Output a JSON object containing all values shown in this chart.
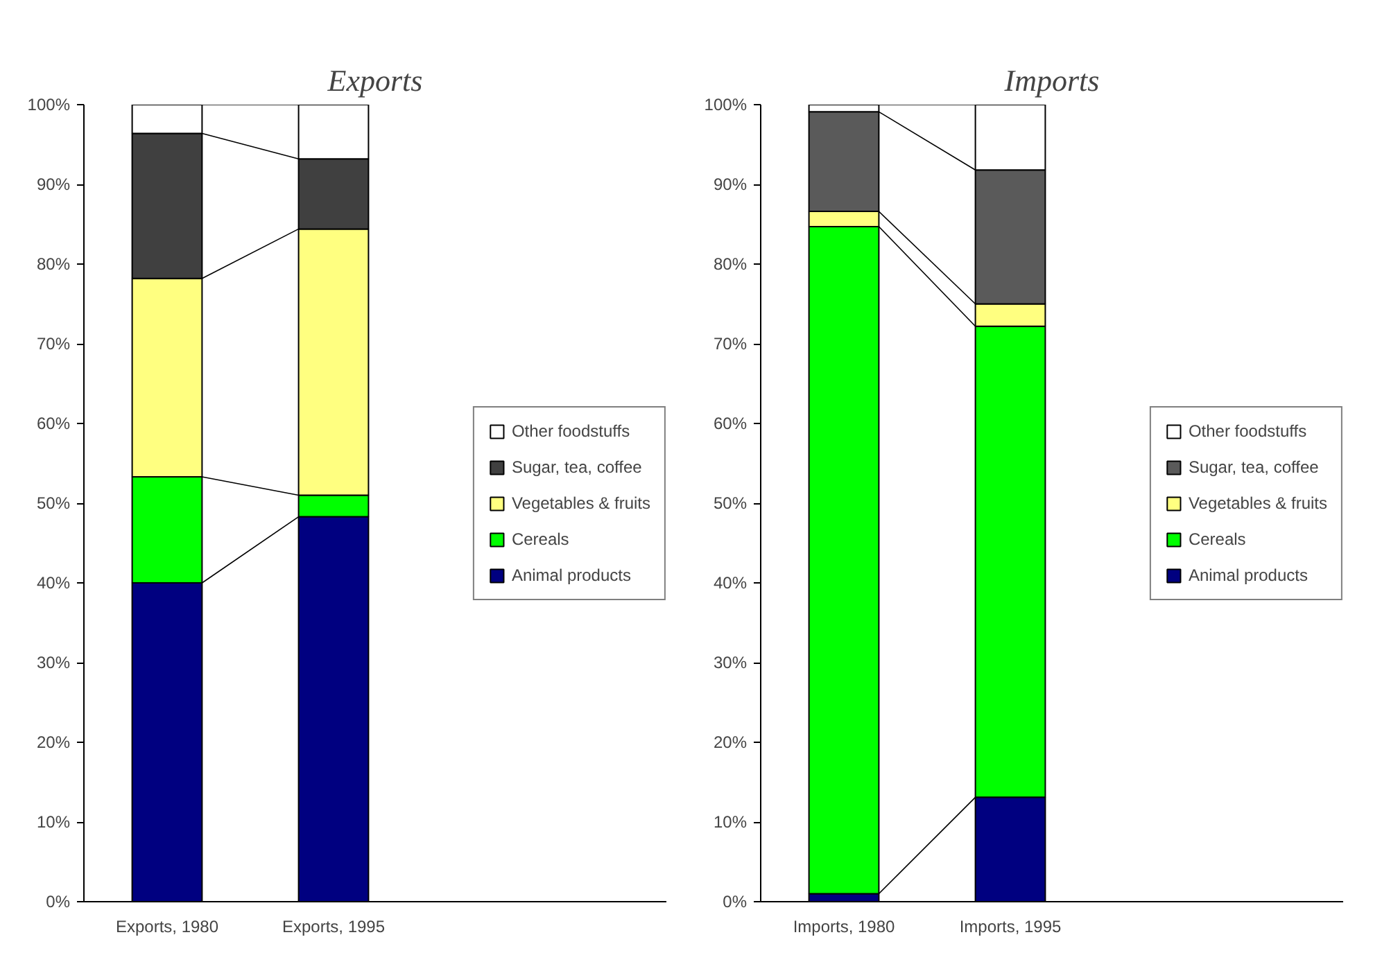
{
  "chart_data": [
    {
      "type": "bar",
      "title": "Exports",
      "stacked": true,
      "legend": "right",
      "grid": false,
      "categories": [
        "Exports, 1980",
        "Exports, 1995"
      ],
      "ylim": [
        0,
        100
      ],
      "yticks": [
        {
          "value": 0,
          "label": "0%"
        },
        {
          "value": 10,
          "label": "10%"
        },
        {
          "value": 20,
          "label": "20%"
        },
        {
          "value": 30,
          "label": "30%"
        },
        {
          "value": 40,
          "label": "40%"
        },
        {
          "value": 50,
          "label": "50%"
        },
        {
          "value": 60,
          "label": "60%"
        },
        {
          "value": 70,
          "label": "70%"
        },
        {
          "value": 80,
          "label": "80%"
        },
        {
          "value": 90,
          "label": "90%"
        },
        {
          "value": 100,
          "label": "100%"
        }
      ],
      "series": [
        {
          "name": "Animal products",
          "color": "#000080",
          "values": [
            40.0,
            48.3
          ]
        },
        {
          "name": "Cereals",
          "color": "#00ff00",
          "values": [
            13.3,
            2.7
          ]
        },
        {
          "name": "Vegetables & fruits",
          "color": "#ffff80",
          "values": [
            24.9,
            33.4
          ]
        },
        {
          "name": "Sugar, tea, coffee",
          "color": "#404040",
          "values": [
            18.2,
            8.8
          ]
        },
        {
          "name": "Other foodstuffs",
          "color": "#ffffff",
          "values": [
            3.6,
            6.8
          ]
        }
      ]
    },
    {
      "type": "bar",
      "title": "Imports",
      "stacked": true,
      "legend": "right",
      "grid": false,
      "categories": [
        "Imports, 1980",
        "Imports, 1995"
      ],
      "ylim": [
        0,
        100
      ],
      "yticks": [
        {
          "value": 0,
          "label": "0%"
        },
        {
          "value": 10,
          "label": "10%"
        },
        {
          "value": 20,
          "label": "20%"
        },
        {
          "value": 30,
          "label": "30%"
        },
        {
          "value": 40,
          "label": "40%"
        },
        {
          "value": 50,
          "label": "50%"
        },
        {
          "value": 60,
          "label": "60%"
        },
        {
          "value": 70,
          "label": "70%"
        },
        {
          "value": 80,
          "label": "80%"
        },
        {
          "value": 90,
          "label": "90%"
        },
        {
          "value": 100,
          "label": "100%"
        }
      ],
      "series": [
        {
          "name": "Animal products",
          "color": "#000080",
          "values": [
            1.0,
            13.1
          ]
        },
        {
          "name": "Cereals",
          "color": "#00ff00",
          "values": [
            83.7,
            59.1
          ]
        },
        {
          "name": "Vegetables & fruits",
          "color": "#ffff80",
          "values": [
            1.9,
            2.8
          ]
        },
        {
          "name": "Sugar, tea, coffee",
          "color": "#5a5a5a",
          "values": [
            12.5,
            16.8
          ]
        },
        {
          "name": "Other foodstuffs",
          "color": "#ffffff",
          "values": [
            0.9,
            8.2
          ]
        }
      ]
    }
  ]
}
